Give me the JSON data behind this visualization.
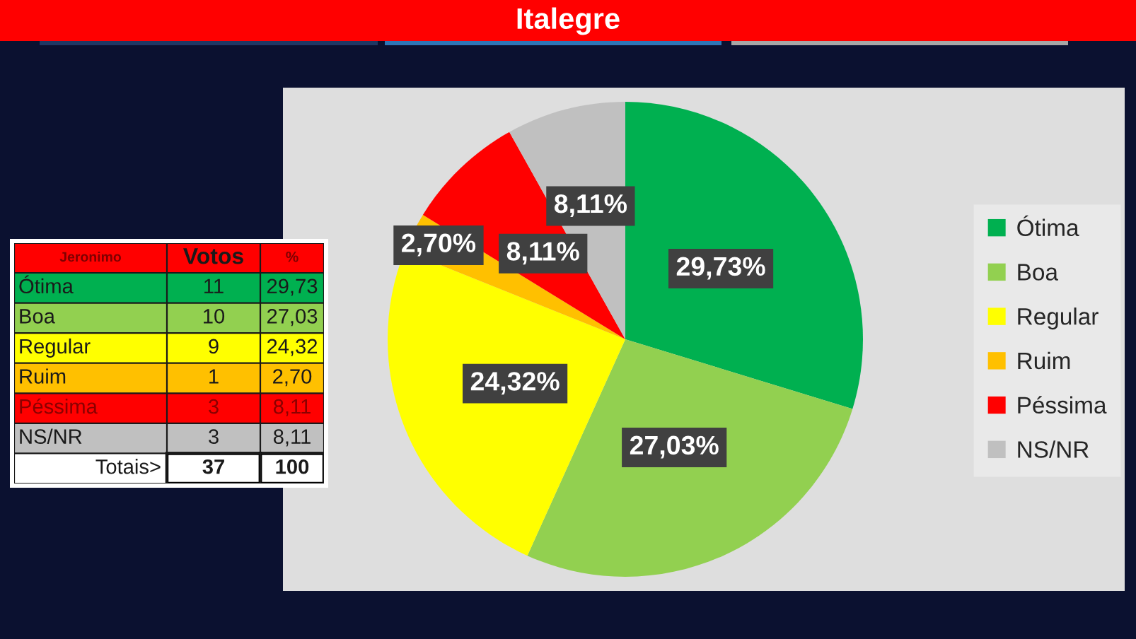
{
  "chart_data": [
    {
      "type": "pie",
      "title": "Italegre",
      "categories": [
        "Ótima",
        "Boa",
        "Regular",
        "Ruim",
        "Péssima",
        "NS/NR"
      ],
      "values": [
        29.73,
        27.03,
        24.32,
        2.7,
        8.11,
        8.11
      ],
      "colors": [
        "#00b050",
        "#92d050",
        "#ffff00",
        "#ffc000",
        "#ff0000",
        "#c0c0c0"
      ],
      "value_labels": [
        "29,73%",
        "27,03%",
        "24,32%",
        "2,70%",
        "8,11%",
        "8,11%"
      ],
      "legend": "right"
    },
    {
      "type": "other",
      "title": "Jeronimo",
      "categories": [
        "Ótima",
        "Boa",
        "Regular",
        "Ruim",
        "Péssima",
        "NS/NR",
        "Totais>"
      ],
      "colors": [
        "#00b050",
        "#92d050",
        "#ffff00",
        "#ffc000",
        "#ff0000",
        "#c0c0c0",
        "#ffffff"
      ],
      "series": [
        {
          "name": "Votos",
          "values": [
            11,
            10,
            9,
            1,
            3,
            3,
            37
          ],
          "colors": [
            "#00b050",
            "#92d050",
            "#ffff00",
            "#ffc000",
            "#ff0000",
            "#c0c0c0",
            "#ffffff"
          ]
        },
        {
          "name": "%",
          "values": [
            29.73,
            27.03,
            24.32,
            2.7,
            8.11,
            8.11,
            100
          ],
          "value_labels": [
            "29,73",
            "27,03",
            "24,32",
            "2,70",
            "8,11",
            "8,11",
            "100"
          ],
          "colors": [
            "#00b050",
            "#92d050",
            "#ffff00",
            "#ffc000",
            "#ff0000",
            "#c0c0c0",
            "#ffffff"
          ]
        }
      ],
      "data_labels": true
    }
  ]
}
